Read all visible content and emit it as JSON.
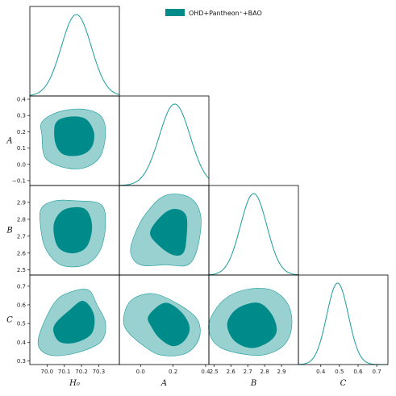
{
  "chart_data": {
    "type": "corner",
    "legend": {
      "label": "OHD+Pantheon$^+$+BAO",
      "display": "OHD+Pantheon⁺+BAO",
      "location": "upper-right"
    },
    "colors": {
      "fill_inner": "#008b8b",
      "fill_outer": "#99d0d0",
      "line": "#1a9c9c",
      "frame": "#000000"
    },
    "parameters": [
      {
        "name": "H0",
        "label": "H₀",
        "range": [
          69.9,
          70.42
        ],
        "ticks": [
          70.0,
          70.1,
          70.2,
          70.3
        ],
        "tick_labels": [
          "70.0",
          "70.1",
          "70.2",
          "70.3"
        ]
      },
      {
        "name": "A",
        "label": "A",
        "range": [
          -0.13,
          0.42
        ],
        "ticks": [
          -0.1,
          0.0,
          0.1,
          0.2,
          0.3,
          0.4
        ],
        "tick_labels": [
          "−0.1",
          "0.0",
          "0.1",
          "0.2",
          "0.3",
          "0.4"
        ],
        "xticks": [
          0.0,
          0.2,
          0.4
        ],
        "xtick_labels": [
          "0.0",
          "0.2",
          "0.4"
        ]
      },
      {
        "name": "B",
        "label": "B",
        "range": [
          2.47,
          3.0
        ],
        "ticks": [
          2.5,
          2.6,
          2.7,
          2.8,
          2.9
        ],
        "tick_labels": [
          "2.5",
          "2.6",
          "2.7",
          "2.8",
          "2.9"
        ]
      },
      {
        "name": "C",
        "label": "C",
        "range": [
          0.28,
          0.76
        ],
        "ticks": [
          0.3,
          0.4,
          0.5,
          0.6,
          0.7
        ],
        "tick_labels": [
          "0.3",
          "0.4",
          "0.5",
          "0.6",
          "0.7"
        ],
        "xticks": [
          0.4,
          0.5,
          0.6,
          0.7
        ],
        "xtick_labels": [
          "0.4",
          "0.5",
          "0.6",
          "0.7"
        ]
      }
    ],
    "marginals": [
      {
        "param": "H0",
        "mean": 70.17,
        "sigma": 0.087
      },
      {
        "param": "A",
        "mean": 0.21,
        "sigma": 0.095
      },
      {
        "param": "B",
        "mean": 2.735,
        "sigma": 0.078
      },
      {
        "param": "C",
        "mean": 0.49,
        "sigma": 0.058
      }
    ],
    "contours": [
      {
        "x": "H0",
        "y": "A",
        "outer": [
          [
            69.97,
            0.26
          ],
          [
            70.06,
            0.32
          ],
          [
            70.2,
            0.34
          ],
          [
            70.31,
            0.3
          ],
          [
            70.34,
            0.2
          ],
          [
            70.31,
            0.05
          ],
          [
            70.22,
            -0.02
          ],
          [
            70.1,
            -0.02
          ],
          [
            69.99,
            0.04
          ],
          [
            69.97,
            0.18
          ]
        ],
        "inner": [
          [
            70.05,
            0.25
          ],
          [
            70.12,
            0.29
          ],
          [
            70.22,
            0.28
          ],
          [
            70.27,
            0.2
          ],
          [
            70.26,
            0.11
          ],
          [
            70.2,
            0.06
          ],
          [
            70.1,
            0.06
          ],
          [
            70.05,
            0.13
          ]
        ]
      },
      {
        "x": "H0",
        "y": "B",
        "outer": [
          [
            69.97,
            2.87
          ],
          [
            70.05,
            2.91
          ],
          [
            70.16,
            2.91
          ],
          [
            70.31,
            2.89
          ],
          [
            70.34,
            2.78
          ],
          [
            70.31,
            2.62
          ],
          [
            70.22,
            2.53
          ],
          [
            70.08,
            2.53
          ],
          [
            69.99,
            2.63
          ],
          [
            69.96,
            2.78
          ]
        ],
        "inner": [
          [
            70.05,
            2.8
          ],
          [
            70.11,
            2.86
          ],
          [
            70.22,
            2.86
          ],
          [
            70.26,
            2.76
          ],
          [
            70.23,
            2.64
          ],
          [
            70.15,
            2.6
          ],
          [
            70.07,
            2.63
          ],
          [
            70.04,
            2.72
          ]
        ]
      },
      {
        "x": "A",
        "y": "B",
        "outer": [
          [
            -0.04,
            2.7
          ],
          [
            0.03,
            2.83
          ],
          [
            0.15,
            2.94
          ],
          [
            0.3,
            2.93
          ],
          [
            0.37,
            2.82
          ],
          [
            0.35,
            2.63
          ],
          [
            0.29,
            2.53
          ],
          [
            0.16,
            2.53
          ],
          [
            0.0,
            2.53
          ],
          [
            -0.06,
            2.6
          ]
        ],
        "inner": [
          [
            0.06,
            2.72
          ],
          [
            0.13,
            2.82
          ],
          [
            0.21,
            2.86
          ],
          [
            0.28,
            2.82
          ],
          [
            0.28,
            2.68
          ],
          [
            0.26,
            2.6
          ],
          [
            0.2,
            2.59
          ],
          [
            0.12,
            2.64
          ]
        ]
      },
      {
        "x": "H0",
        "y": "C",
        "outer": [
          [
            69.97,
            0.48
          ],
          [
            70.05,
            0.62
          ],
          [
            70.14,
            0.67
          ],
          [
            70.24,
            0.68
          ],
          [
            70.29,
            0.6
          ],
          [
            70.34,
            0.5
          ],
          [
            70.31,
            0.4
          ],
          [
            70.16,
            0.34
          ],
          [
            70.02,
            0.33
          ],
          [
            69.95,
            0.38
          ]
        ],
        "inner": [
          [
            70.05,
            0.5
          ],
          [
            70.13,
            0.57
          ],
          [
            70.21,
            0.62
          ],
          [
            70.27,
            0.55
          ],
          [
            70.26,
            0.45
          ],
          [
            70.17,
            0.4
          ],
          [
            70.08,
            0.4
          ],
          [
            70.04,
            0.45
          ]
        ]
      },
      {
        "x": "A",
        "y": "C",
        "outer": [
          [
            -0.1,
            0.55
          ],
          [
            -0.05,
            0.63
          ],
          [
            0.08,
            0.66
          ],
          [
            0.24,
            0.6
          ],
          [
            0.35,
            0.52
          ],
          [
            0.36,
            0.42
          ],
          [
            0.28,
            0.34
          ],
          [
            0.13,
            0.33
          ],
          [
            0.02,
            0.38
          ],
          [
            -0.09,
            0.47
          ]
        ],
        "inner": [
          [
            0.05,
            0.54
          ],
          [
            0.15,
            0.61
          ],
          [
            0.25,
            0.56
          ],
          [
            0.3,
            0.48
          ],
          [
            0.27,
            0.41
          ],
          [
            0.2,
            0.38
          ],
          [
            0.12,
            0.42
          ],
          [
            0.07,
            0.48
          ]
        ]
      },
      {
        "x": "B",
        "y": "C",
        "outer": [
          [
            2.47,
            0.5
          ],
          [
            2.55,
            0.62
          ],
          [
            2.68,
            0.68
          ],
          [
            2.84,
            0.68
          ],
          [
            2.94,
            0.6
          ],
          [
            2.96,
            0.48
          ],
          [
            2.91,
            0.38
          ],
          [
            2.78,
            0.33
          ],
          [
            2.6,
            0.35
          ],
          [
            2.5,
            0.4
          ]
        ],
        "inner": [
          [
            2.58,
            0.5
          ],
          [
            2.64,
            0.58
          ],
          [
            2.76,
            0.61
          ],
          [
            2.84,
            0.55
          ],
          [
            2.87,
            0.46
          ],
          [
            2.82,
            0.4
          ],
          [
            2.72,
            0.37
          ],
          [
            2.62,
            0.41
          ]
        ]
      }
    ]
  }
}
